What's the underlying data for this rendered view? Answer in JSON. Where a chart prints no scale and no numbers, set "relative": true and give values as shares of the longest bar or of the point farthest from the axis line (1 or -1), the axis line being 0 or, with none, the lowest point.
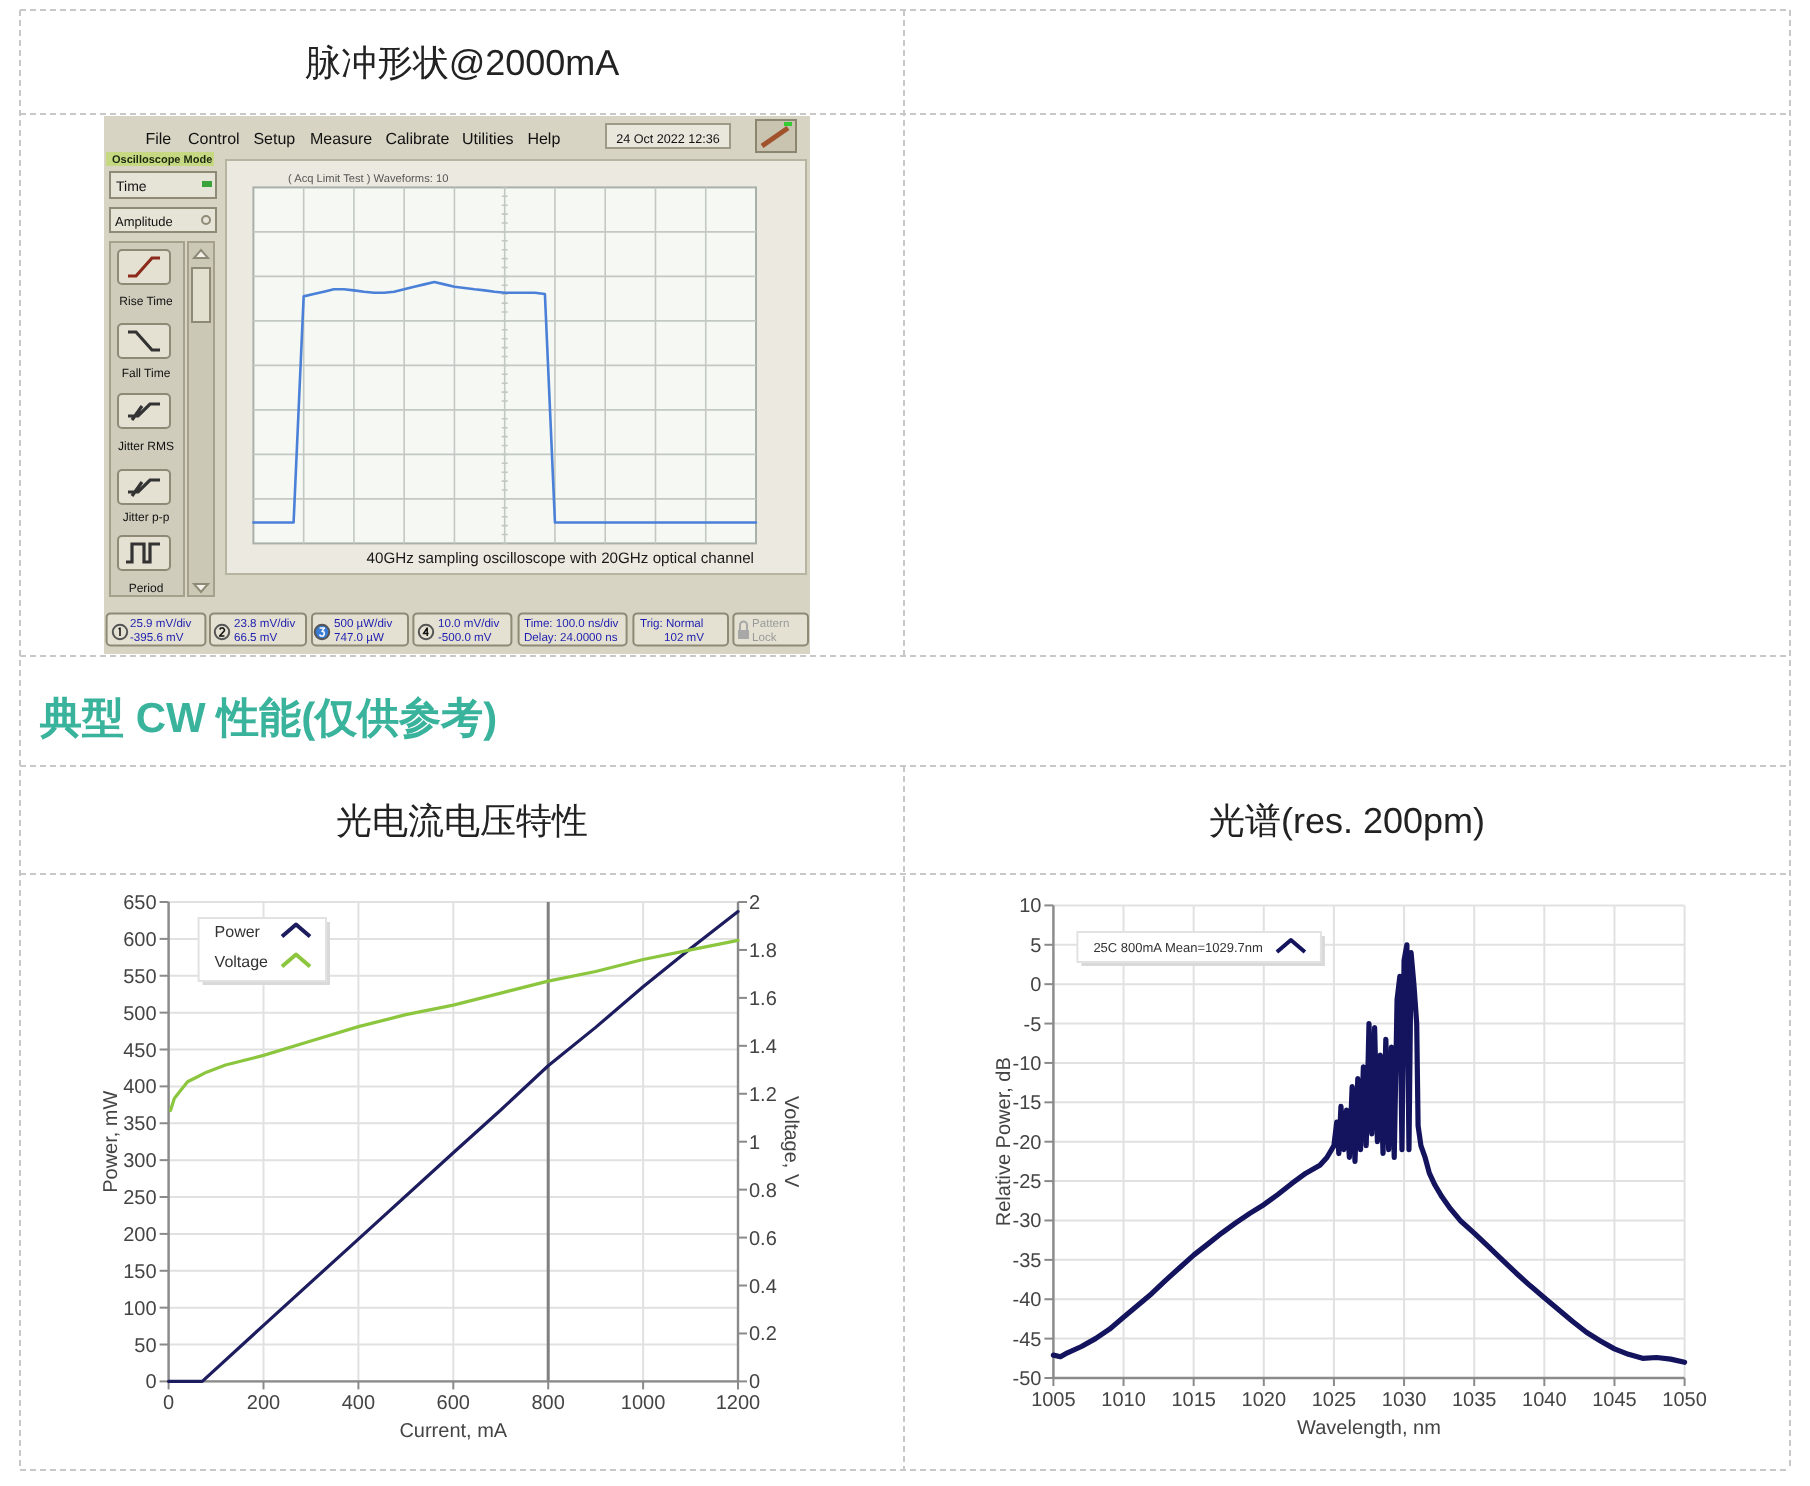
{
  "chart_data": [
    {
      "type": "other",
      "title": "脉冲形状@2000mA",
      "annotations": [
        "File",
        "Control",
        "Setup",
        "Measure",
        "Calibrate",
        "Utilities",
        "Help",
        "24 Oct 2022  12:36",
        "Oscilloscope Mode",
        "Time",
        "Amplitude",
        "Rise Time",
        "Fall Time",
        "Jitter RMS",
        "Jitter p-p",
        "Period",
        "25.9 mV/div",
        "-395.6 mV",
        "23.8 mV/div",
        "66.5 mV",
        "500 µW/div",
        "747.0 µW",
        "10.0 mV/div",
        "-500.0 mV",
        "Time: 100.0 ns/div",
        "Delay: 24.0000 ns",
        "Trig: Normal",
        "102 mV",
        "Pattern",
        "Lock"
      ]
    },
    {
      "type": "line",
      "relative": true,
      "grid": true,
      "categories": [
        null,
        null,
        null,
        null,
        null,
        null,
        null,
        null,
        null,
        null,
        null,
        null,
        null,
        null,
        null,
        null,
        null,
        null,
        null,
        null,
        null,
        null,
        null,
        null,
        null,
        null,
        null,
        null,
        null,
        null,
        null,
        null,
        null,
        null,
        null,
        null,
        null,
        null,
        null,
        null,
        null,
        null,
        null,
        null,
        null,
        null,
        null,
        null,
        null,
        null,
        null
      ],
      "series": [
        {
          "color": "#4a80d8",
          "values": [
            0.08,
            0.08,
            0.08,
            0.08,
            0.08,
            0.945,
            0.954,
            0.963,
            0.972,
            0.972,
            0.968,
            0.963,
            0.959,
            0.959,
            0.963,
            0.972,
            0.982,
            0.991,
            1,
            0.991,
            0.982,
            0.977,
            0.972,
            0.968,
            0.963,
            0.959,
            0.959,
            0.959,
            0.959,
            0.954,
            0.08,
            0.08,
            0.08,
            0.08,
            0.08,
            0.08,
            0.08,
            0.08,
            0.08,
            0.08,
            0.08,
            0.08,
            0.08,
            0.08,
            0.08,
            0.08,
            0.08,
            0.08,
            0.08,
            0.08,
            0.08
          ]
        }
      ],
      "annotations": [
        "( Acq Limit Test )  Waveforms: 10",
        "40GHz sampling oscilloscope with 20GHz optical channel"
      ]
    },
    {
      "type": "other",
      "title": "典型 CW 性能(仅供参考)"
    },
    {
      "type": "line",
      "title": "光电流电压特性",
      "xlabel": "Current, mA",
      "ylabel": "Power, mW",
      "y2label": "Voltage, V",
      "xlim": [
        0,
        1200
      ],
      "xticks": [
        0,
        200,
        400,
        600,
        800,
        1000,
        1200
      ],
      "ylim": [
        0,
        650
      ],
      "yticks": [
        0,
        50,
        100,
        150,
        200,
        250,
        300,
        350,
        400,
        450,
        500,
        550,
        600,
        650
      ],
      "y2lim": [
        0,
        2
      ],
      "y2ticks": [
        0,
        0.2,
        0.4,
        0.6,
        0.8,
        1,
        1.2,
        1.4,
        1.6,
        1.8,
        2
      ],
      "grid": true,
      "legend": "top left",
      "ref_lines": [
        {
          "axis": "x",
          "value": 800,
          "color": "#808080"
        }
      ],
      "series": [
        {
          "name": "Power",
          "color": "#1c1c5e",
          "x": [
            0,
            71,
            200,
            400,
            600,
            700,
            800,
            900,
            1000,
            1100,
            1200
          ],
          "values": [
            0,
            0,
            76,
            193,
            310,
            368,
            428,
            480,
            535,
            587,
            637
          ]
        },
        {
          "name": "Voltage",
          "color": "#8cc63f",
          "axis": "y2",
          "x": [
            4,
            12,
            24,
            40,
            60,
            80,
            120,
            200,
            300,
            400,
            500,
            600,
            700,
            800,
            900,
            1000,
            1100,
            1200
          ],
          "values": [
            1.13,
            1.18,
            1.21,
            1.25,
            1.27,
            1.29,
            1.32,
            1.36,
            1.42,
            1.48,
            1.53,
            1.57,
            1.62,
            1.67,
            1.71,
            1.76,
            1.8,
            1.84
          ]
        }
      ]
    },
    {
      "type": "line",
      "title": "光谱(res. 200pm)",
      "xlabel": "Wavelength, nm",
      "ylabel": "Relative Power, dB",
      "xlim": [
        1005,
        1050
      ],
      "xticks": [
        1005,
        1010,
        1015,
        1020,
        1025,
        1030,
        1035,
        1040,
        1045,
        1050
      ],
      "ylim": [
        -50,
        10
      ],
      "yticks": [
        -50,
        -45,
        -40,
        -35,
        -30,
        -25,
        -20,
        -15,
        -10,
        -5,
        0,
        5,
        10
      ],
      "grid": true,
      "legend": "top left",
      "series": [
        {
          "name": "25C 800mA Mean=1029.7nm",
          "color": "#13135e",
          "x": [
            1005,
            1005.5,
            1006,
            1007,
            1008,
            1009,
            1010,
            1011,
            1012,
            1013,
            1014,
            1015,
            1016,
            1017,
            1018,
            1019,
            1020,
            1021,
            1022,
            1023,
            1024,
            1024.5,
            1025,
            1025.2,
            1025.35,
            1025.5,
            1025.7,
            1025.9,
            1026.1,
            1026.3,
            1026.5,
            1026.7,
            1026.9,
            1027.1,
            1027.3,
            1027.5,
            1027.7,
            1027.9,
            1028.1,
            1028.3,
            1028.5,
            1028.7,
            1028.9,
            1029.1,
            1029.3,
            1029.5,
            1029.7,
            1029.85,
            1030,
            1030.2,
            1030.35,
            1030.5,
            1030.7,
            1030.9,
            1031,
            1031.2,
            1031.5,
            1031.8,
            1032.2,
            1032.7,
            1033.3,
            1034,
            1035,
            1036,
            1037,
            1038,
            1039,
            1040,
            1041,
            1042,
            1043,
            1044,
            1045,
            1046,
            1047,
            1048,
            1049,
            1050
          ],
          "values": [
            -47.1,
            -47.3,
            -46.8,
            -46,
            -45,
            -43.8,
            -42.3,
            -40.8,
            -39.3,
            -37.6,
            -36,
            -34.4,
            -33,
            -31.6,
            -30.3,
            -29.1,
            -28,
            -26.7,
            -25.3,
            -24,
            -23,
            -22,
            -20.5,
            -17.5,
            -21.5,
            -15.5,
            -21,
            -16,
            -22,
            -13,
            -22.5,
            -12,
            -21,
            -10.5,
            -20.5,
            -5,
            -19,
            -5.5,
            -20,
            -9,
            -21.5,
            -7,
            -21,
            -8,
            -22,
            -2,
            1,
            -21,
            3,
            5,
            -21,
            4,
            0,
            -5,
            -18,
            -20.5,
            -22,
            -24,
            -25.5,
            -27,
            -28.5,
            -30,
            -31.6,
            -33.3,
            -35,
            -36.7,
            -38.3,
            -39.8,
            -41.3,
            -42.8,
            -44.2,
            -45.3,
            -46.3,
            -47,
            -47.5,
            -47.4,
            -47.6,
            -48
          ]
        }
      ]
    }
  ]
}
